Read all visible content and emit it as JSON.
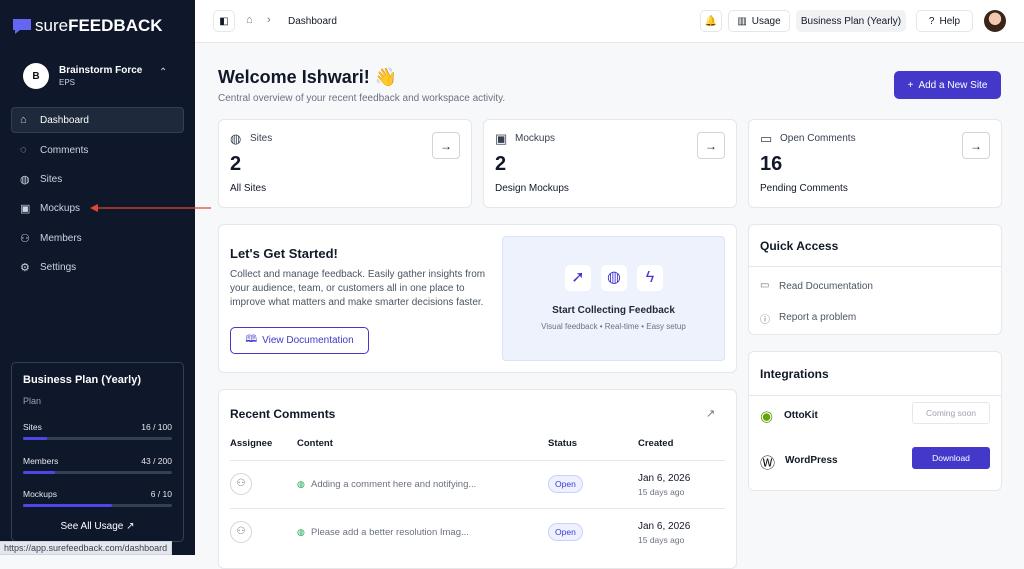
{
  "sidebar": {
    "brand": {
      "prefix": "sure",
      "name": "FEEDBACK"
    },
    "workspace": {
      "avatar": "B",
      "name": "Brainstorm Force",
      "subtitle": "EPS"
    },
    "nav": [
      "Dashboard",
      "Comments",
      "Sites",
      "Mockups",
      "Members",
      "Settings"
    ],
    "plan": {
      "title": "Business Plan (Yearly)",
      "subtitle": "Plan",
      "usage": [
        {
          "name": "Sites",
          "used": 16,
          "limit": 100,
          "label": "16 / 100"
        },
        {
          "name": "Members",
          "used": 43,
          "limit": 200,
          "label": "43 / 200"
        },
        {
          "name": "Mockups",
          "used": 6,
          "limit": 10,
          "label": "6 / 10"
        }
      ],
      "link": "See All Usage"
    },
    "status_url": "https://app.surefeedback.com/dashboard"
  },
  "topbar": {
    "breadcrumb": "Dashboard",
    "usage": "Usage",
    "plan": "Business Plan (Yearly)",
    "help": "Help"
  },
  "header": {
    "title": "Welcome Ishwari! 👋",
    "subtitle": "Central overview of your recent feedback and workspace activity.",
    "button": "Add a New Site"
  },
  "stats": [
    {
      "label": "Sites",
      "value": 2,
      "caption": "All Sites"
    },
    {
      "label": "Mockups",
      "value": 2,
      "caption": "Design Mockups"
    },
    {
      "label": "Open Comments",
      "value": 16,
      "caption": "Pending Comments"
    }
  ],
  "get_started": {
    "title": "Let's Get Started!",
    "body": "Collect and manage feedback. Easily gather insights from your audience, team, or customers all in one place to improve what matters and make smarter decisions faster.",
    "button": "View Documentation",
    "illustration_title": "Start Collecting Feedback",
    "illustration_caption": "Visual feedback • Real-time • Easy setup"
  },
  "recent_comments": {
    "title": "Recent Comments",
    "columns": [
      "Assignee",
      "Content",
      "Status",
      "Created"
    ],
    "rows": [
      {
        "content": "Adding a comment here and notifying...",
        "status": "Open",
        "date": "Jan 6, 2026",
        "ago": "15 days ago"
      },
      {
        "content": "Please add a better resolution Imag...",
        "status": "Open",
        "date": "Jan 6, 2026",
        "ago": "15 days ago"
      }
    ]
  },
  "quick_access": {
    "title": "Quick Access",
    "items": [
      "Read Documentation",
      "Report a problem"
    ]
  },
  "integrations": {
    "title": "Integrations",
    "items": [
      {
        "name": "OttoKit",
        "action": "Coming soon"
      },
      {
        "name": "WordPress",
        "action": "Download"
      }
    ]
  }
}
